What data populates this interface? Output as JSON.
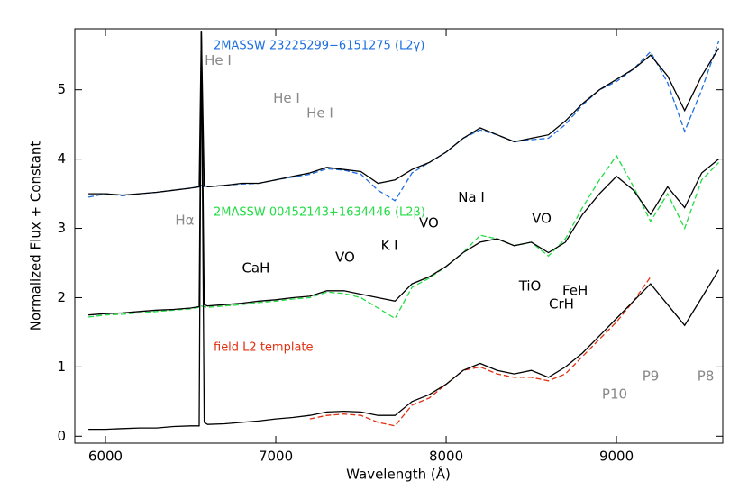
{
  "chart_data": {
    "type": "line",
    "x_label": "Wavelength (Å)",
    "y_label": "Normalized Flux + Constant",
    "xlim": [
      5820,
      9624
    ],
    "ylim": [
      -0.1,
      5.88
    ],
    "xticks": [
      6000,
      7000,
      8000,
      9000
    ],
    "yticks": [
      0,
      1,
      2,
      3,
      4,
      5
    ],
    "x": [
      5900,
      6000,
      6100,
      6200,
      6300,
      6400,
      6500,
      6550,
      6563,
      6580,
      6600,
      6700,
      6800,
      6900,
      7000,
      7100,
      7200,
      7300,
      7400,
      7500,
      7600,
      7700,
      7800,
      7900,
      8000,
      8100,
      8200,
      8300,
      8400,
      8500,
      8600,
      8700,
      8800,
      8900,
      9000,
      9100,
      9200,
      9300,
      9400,
      9500,
      9600
    ],
    "series": [
      {
        "name": "2MASSW 23225299−6151275 (L2γ)",
        "color": "#1f6fe0",
        "linestyle": "dashed",
        "values": [
          3.45,
          3.5,
          3.47,
          3.5,
          3.52,
          3.55,
          3.58,
          3.6,
          3.62,
          3.6,
          3.6,
          3.62,
          3.64,
          3.65,
          3.7,
          3.74,
          3.78,
          3.86,
          3.84,
          3.78,
          3.55,
          3.4,
          3.8,
          3.95,
          4.1,
          4.3,
          4.42,
          4.35,
          4.25,
          4.28,
          4.3,
          4.5,
          4.78,
          5.0,
          5.12,
          5.3,
          5.55,
          5.1,
          4.4,
          5.0,
          5.7
        ]
      },
      {
        "color": "#000000",
        "linestyle": "solid",
        "values": [
          3.5,
          3.5,
          3.48,
          3.5,
          3.52,
          3.55,
          3.58,
          3.6,
          5.85,
          3.62,
          3.6,
          3.62,
          3.65,
          3.65,
          3.7,
          3.75,
          3.8,
          3.88,
          3.85,
          3.82,
          3.65,
          3.7,
          3.85,
          3.95,
          4.1,
          4.3,
          4.45,
          4.35,
          4.25,
          4.3,
          4.35,
          4.55,
          4.8,
          5.0,
          5.15,
          5.3,
          5.5,
          5.2,
          4.7,
          5.2,
          5.6
        ]
      },
      {
        "name": "2MASSW 00452143+1634446 (L2β)",
        "color": "#22dd44",
        "linestyle": "dashed",
        "values": [
          1.72,
          1.75,
          1.76,
          1.78,
          1.8,
          1.82,
          1.84,
          1.86,
          1.88,
          1.87,
          1.86,
          1.88,
          1.9,
          1.93,
          1.95,
          1.98,
          2.0,
          2.08,
          2.06,
          2.0,
          1.85,
          1.7,
          2.15,
          2.28,
          2.45,
          2.65,
          2.9,
          2.85,
          2.75,
          2.8,
          2.6,
          2.85,
          3.3,
          3.7,
          4.05,
          3.6,
          3.1,
          3.5,
          3.0,
          3.7,
          3.95
        ]
      },
      {
        "color": "#000000",
        "linestyle": "solid",
        "values": [
          1.75,
          1.77,
          1.78,
          1.8,
          1.82,
          1.83,
          1.85,
          1.87,
          5.85,
          1.9,
          1.88,
          1.9,
          1.92,
          1.95,
          1.97,
          2.0,
          2.02,
          2.1,
          2.1,
          2.05,
          2.0,
          1.95,
          2.2,
          2.3,
          2.45,
          2.65,
          2.8,
          2.85,
          2.75,
          2.8,
          2.65,
          2.8,
          3.2,
          3.5,
          3.75,
          3.55,
          3.2,
          3.6,
          3.3,
          3.8,
          4.0
        ]
      },
      {
        "name": "field L2 template",
        "color": "#e03010",
        "linestyle": "dashed",
        "values": [
          null,
          null,
          null,
          null,
          null,
          null,
          null,
          null,
          null,
          null,
          null,
          null,
          null,
          null,
          null,
          null,
          0.25,
          0.3,
          0.32,
          0.3,
          0.2,
          0.15,
          0.45,
          0.55,
          0.75,
          0.95,
          1.0,
          0.9,
          0.85,
          0.85,
          0.8,
          0.9,
          1.15,
          1.4,
          1.65,
          1.95,
          2.3,
          null,
          null,
          null,
          null
        ]
      },
      {
        "color": "#000000",
        "linestyle": "solid",
        "values": [
          0.1,
          0.1,
          0.11,
          0.12,
          0.12,
          0.14,
          0.15,
          0.15,
          5.85,
          0.2,
          0.17,
          0.18,
          0.2,
          0.22,
          0.25,
          0.27,
          0.3,
          0.35,
          0.36,
          0.35,
          0.3,
          0.3,
          0.5,
          0.6,
          0.75,
          0.95,
          1.05,
          0.95,
          0.9,
          0.95,
          0.85,
          1.0,
          1.2,
          1.45,
          1.7,
          1.95,
          2.2,
          1.9,
          1.6,
          2.0,
          2.4
        ]
      }
    ],
    "annotations": [
      {
        "text": "He I",
        "x": 6661,
        "y": 5.42,
        "color": "#888888"
      },
      {
        "text": "He I",
        "x": 7063,
        "y": 4.87,
        "color": "#888888"
      },
      {
        "text": "He I",
        "x": 7259,
        "y": 4.66,
        "color": "#888888"
      },
      {
        "text": "Hα",
        "x": 6465,
        "y": 3.11,
        "color": "#888888"
      },
      {
        "text": "P10",
        "x": 8989,
        "y": 0.6,
        "color": "#888888"
      },
      {
        "text": "P9",
        "x": 9201,
        "y": 0.86,
        "color": "#888888"
      },
      {
        "text": "P8",
        "x": 9524,
        "y": 0.86,
        "color": "#888888"
      },
      {
        "text": "CaH",
        "x": 6883,
        "y": 2.42,
        "color": "#000000"
      },
      {
        "text": "VO",
        "x": 7407,
        "y": 2.58,
        "color": "#000000"
      },
      {
        "text": "K I",
        "x": 7667,
        "y": 2.75,
        "color": "#000000"
      },
      {
        "text": "VO",
        "x": 7899,
        "y": 3.07,
        "color": "#000000"
      },
      {
        "text": "Na I",
        "x": 8148,
        "y": 3.44,
        "color": "#000000"
      },
      {
        "text": "VO",
        "x": 8561,
        "y": 3.14,
        "color": "#000000"
      },
      {
        "text": "TiO",
        "x": 8492,
        "y": 2.16,
        "color": "#000000"
      },
      {
        "text": "CrH",
        "x": 8677,
        "y": 1.9,
        "color": "#000000"
      },
      {
        "text": "FeH",
        "x": 8757,
        "y": 2.1,
        "color": "#000000"
      }
    ]
  }
}
